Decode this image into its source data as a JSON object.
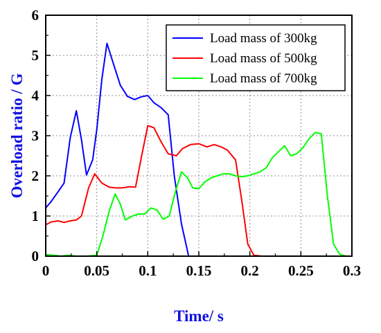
{
  "chart_data": {
    "type": "line",
    "xlabel": "Time/ s",
    "ylabel": "Overload ratio / G",
    "xlim": [
      0,
      0.3
    ],
    "ylim": [
      0,
      6
    ],
    "x_ticks": [
      "0",
      "0.05",
      "0.1",
      "0.15",
      "0.2",
      "0.25",
      "0.3"
    ],
    "x_tick_values": [
      0,
      0.05,
      0.1,
      0.15,
      0.2,
      0.25,
      0.3
    ],
    "y_ticks": [
      "0",
      "1",
      "2",
      "3",
      "4",
      "5",
      "6"
    ],
    "y_tick_values": [
      0,
      1,
      2,
      3,
      4,
      5,
      6
    ],
    "grid": true,
    "legend_position": "top-right",
    "series": [
      {
        "name": "Load mass of 300kg",
        "color": "#0000ff",
        "x": [
          0,
          0.005,
          0.012,
          0.018,
          0.024,
          0.03,
          0.035,
          0.04,
          0.046,
          0.05,
          0.055,
          0.06,
          0.066,
          0.073,
          0.08,
          0.087,
          0.094,
          0.1,
          0.106,
          0.113,
          0.12,
          0.126,
          0.133,
          0.14,
          0.2,
          0.3
        ],
        "y": [
          1.2,
          1.35,
          1.6,
          1.82,
          2.95,
          3.62,
          2.9,
          2.02,
          2.4,
          3.15,
          4.4,
          5.3,
          4.82,
          4.26,
          3.98,
          3.9,
          3.97,
          4.0,
          3.82,
          3.7,
          3.52,
          2.0,
          0.8,
          0.0,
          0.0,
          0.0
        ]
      },
      {
        "name": "Load mass of 500kg",
        "color": "#ff0000",
        "x": [
          0,
          0.005,
          0.012,
          0.018,
          0.024,
          0.03,
          0.035,
          0.042,
          0.048,
          0.055,
          0.062,
          0.068,
          0.075,
          0.082,
          0.088,
          0.094,
          0.1,
          0.106,
          0.113,
          0.12,
          0.128,
          0.134,
          0.142,
          0.15,
          0.158,
          0.165,
          0.172,
          0.178,
          0.186,
          0.192,
          0.198,
          0.204,
          0.212,
          0.22,
          0.3
        ],
        "y": [
          0.78,
          0.85,
          0.88,
          0.84,
          0.88,
          0.9,
          1.0,
          1.7,
          2.05,
          1.82,
          1.72,
          1.7,
          1.7,
          1.73,
          1.72,
          2.5,
          3.25,
          3.2,
          2.85,
          2.55,
          2.5,
          2.68,
          2.78,
          2.8,
          2.72,
          2.78,
          2.72,
          2.64,
          2.4,
          1.4,
          0.3,
          0.02,
          0.0,
          0.0,
          0.0
        ]
      },
      {
        "name": "Load mass of 700kg",
        "color": "#00ff00",
        "x": [
          0,
          0.008,
          0.015,
          0.022,
          0.03,
          0.04,
          0.05,
          0.056,
          0.062,
          0.068,
          0.073,
          0.078,
          0.085,
          0.091,
          0.097,
          0.103,
          0.109,
          0.115,
          0.121,
          0.127,
          0.133,
          0.139,
          0.144,
          0.15,
          0.156,
          0.162,
          0.168,
          0.174,
          0.18,
          0.186,
          0.192,
          0.198,
          0.204,
          0.21,
          0.216,
          0.222,
          0.228,
          0.234,
          0.24,
          0.246,
          0.252,
          0.258,
          0.264,
          0.27,
          0.276,
          0.282,
          0.288,
          0.294,
          0.3
        ],
        "y": [
          0.04,
          0.02,
          0.0,
          0.02,
          0.0,
          0.0,
          0.02,
          0.5,
          1.1,
          1.55,
          1.3,
          0.9,
          1.0,
          1.05,
          1.05,
          1.2,
          1.15,
          0.92,
          1.0,
          1.6,
          2.1,
          1.95,
          1.7,
          1.68,
          1.85,
          1.95,
          2.0,
          2.05,
          2.05,
          2.0,
          1.98,
          2.0,
          2.05,
          2.1,
          2.2,
          2.45,
          2.6,
          2.75,
          2.5,
          2.55,
          2.7,
          2.92,
          3.08,
          3.05,
          1.5,
          0.3,
          0.05,
          0.0,
          0.0
        ]
      }
    ]
  }
}
